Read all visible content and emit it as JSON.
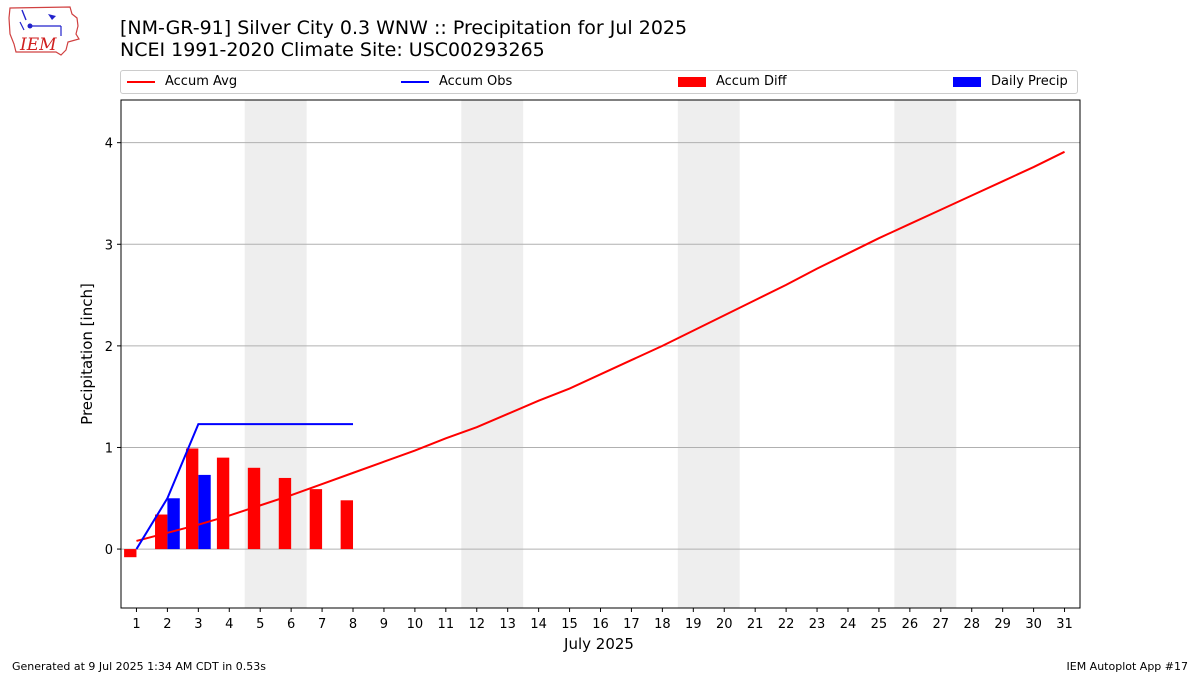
{
  "header": {
    "title_line1": "[NM-GR-91] Silver City 0.3 WNW :: Precipitation for Jul 2025",
    "title_line2": "NCEI 1991-2020 Climate Site: USC00293265",
    "logo_text": "IEM"
  },
  "footer": {
    "generated": "Generated at 9 Jul 2025 1:34 AM CDT in 0.53s",
    "app": "IEM Autoplot App #17"
  },
  "colors": {
    "avg": "#ff0000",
    "obs": "#0000ff",
    "diff": "#ff0000",
    "daily": "#0000ff",
    "weekend": "#eeeeee",
    "grid": "#b0b0b0"
  },
  "chart_data": {
    "type": "bar",
    "xlabel": "July 2025",
    "ylabel": "Precipitation [inch]",
    "xlim": [
      0.5,
      31.5
    ],
    "ylim": [
      -0.58,
      4.42
    ],
    "yticks": [
      0,
      1,
      2,
      3,
      4
    ],
    "x": [
      1,
      2,
      3,
      4,
      5,
      6,
      7,
      8,
      9,
      10,
      11,
      12,
      13,
      14,
      15,
      16,
      17,
      18,
      19,
      20,
      21,
      22,
      23,
      24,
      25,
      26,
      27,
      28,
      29,
      30,
      31
    ],
    "weekend_bands": [
      [
        5,
        6
      ],
      [
        12,
        13
      ],
      [
        19,
        20
      ],
      [
        26,
        27
      ]
    ],
    "legend": [
      "Accum Avg",
      "Accum Obs",
      "Accum Diff",
      "Daily Precip"
    ],
    "legend_placement": "top",
    "grid": "y",
    "series": [
      {
        "name": "Accum Avg",
        "type": "line",
        "x": [
          1,
          2,
          3,
          4,
          5,
          6,
          7,
          8,
          9,
          10,
          11,
          12,
          13,
          14,
          15,
          16,
          17,
          18,
          19,
          20,
          21,
          22,
          23,
          24,
          25,
          26,
          27,
          28,
          29,
          30,
          31
        ],
        "values": [
          0.08,
          0.16,
          0.24,
          0.33,
          0.43,
          0.53,
          0.64,
          0.75,
          0.86,
          0.97,
          1.09,
          1.2,
          1.33,
          1.46,
          1.58,
          1.72,
          1.86,
          2.0,
          2.15,
          2.3,
          2.45,
          2.6,
          2.76,
          2.91,
          3.06,
          3.2,
          3.34,
          3.48,
          3.62,
          3.76,
          3.91
        ]
      },
      {
        "name": "Accum Obs",
        "type": "line",
        "x": [
          1,
          2,
          3,
          4,
          5,
          6,
          7,
          8
        ],
        "values": [
          0.0,
          0.5,
          1.23,
          1.23,
          1.23,
          1.23,
          1.23,
          1.23
        ]
      },
      {
        "name": "Accum Diff",
        "type": "bar",
        "x": [
          1,
          2,
          3,
          4,
          5,
          6,
          7,
          8
        ],
        "values": [
          -0.08,
          0.34,
          0.99,
          0.9,
          0.8,
          0.7,
          0.59,
          0.48
        ]
      },
      {
        "name": "Daily Precip",
        "type": "bar",
        "x": [
          1,
          2,
          3,
          4,
          5,
          6,
          7,
          8
        ],
        "values": [
          0.0,
          0.5,
          0.73,
          0.0,
          0.0,
          0.0,
          0.0,
          0.0
        ]
      }
    ]
  }
}
